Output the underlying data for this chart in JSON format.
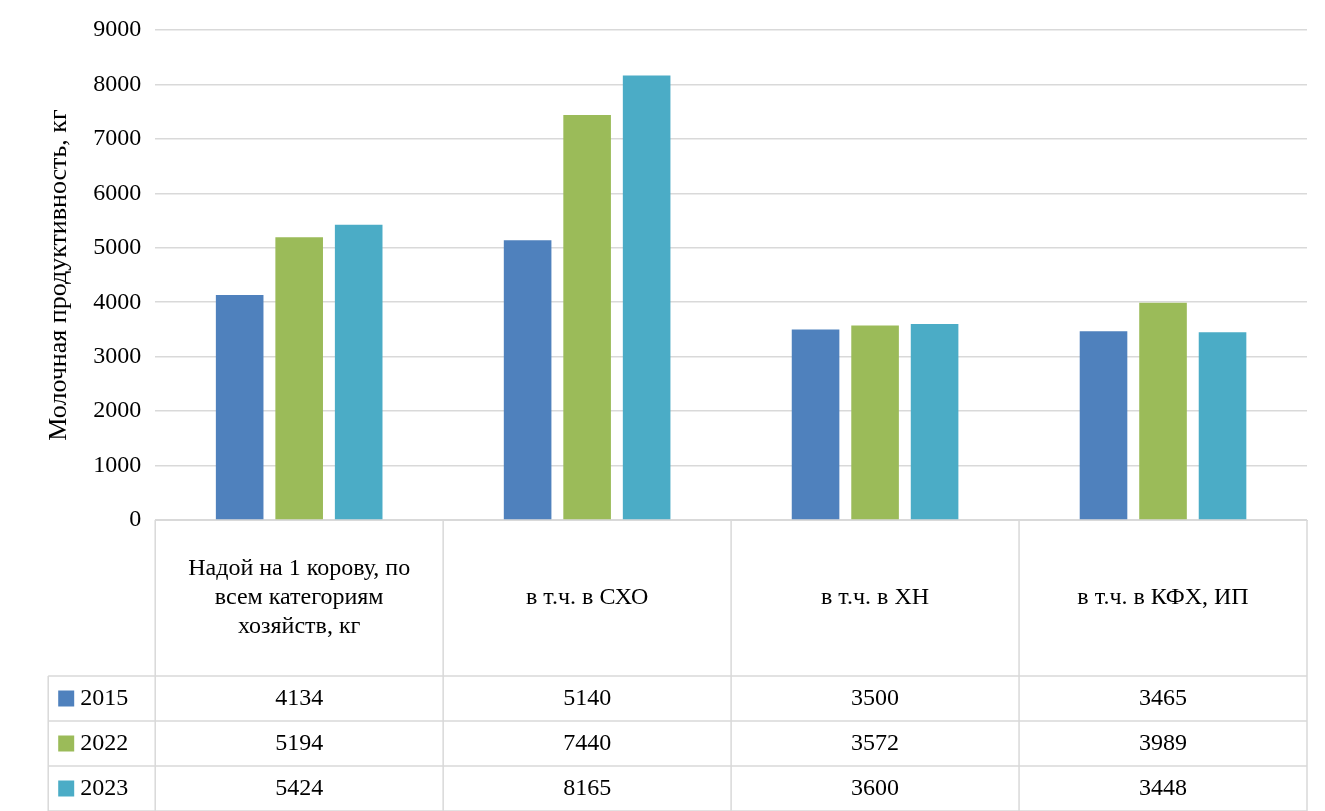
{
  "chart_data": {
    "type": "bar",
    "ylabel": "Молочная продуктивность, кг",
    "categories": [
      "Надой на 1 корову, по всем категориям хозяйств, кг",
      "в т.ч. в СХО",
      "в т.ч. в ХН",
      "в т.ч. в КФХ, ИП"
    ],
    "series": [
      {
        "name": "2015",
        "color": "#4f81bd",
        "values": [
          4134,
          5140,
          3500,
          3465
        ]
      },
      {
        "name": "2022",
        "color": "#9bbb59",
        "values": [
          5194,
          7440,
          3572,
          3989
        ]
      },
      {
        "name": "2023",
        "color": "#4bacc6",
        "values": [
          5424,
          8165,
          3600,
          3448
        ]
      }
    ],
    "ylim": [
      0,
      9000
    ],
    "yticks": [
      0,
      1000,
      2000,
      3000,
      4000,
      5000,
      6000,
      7000,
      8000,
      9000
    ],
    "grid": "y",
    "legend": "bottom",
    "data_labels": true
  }
}
